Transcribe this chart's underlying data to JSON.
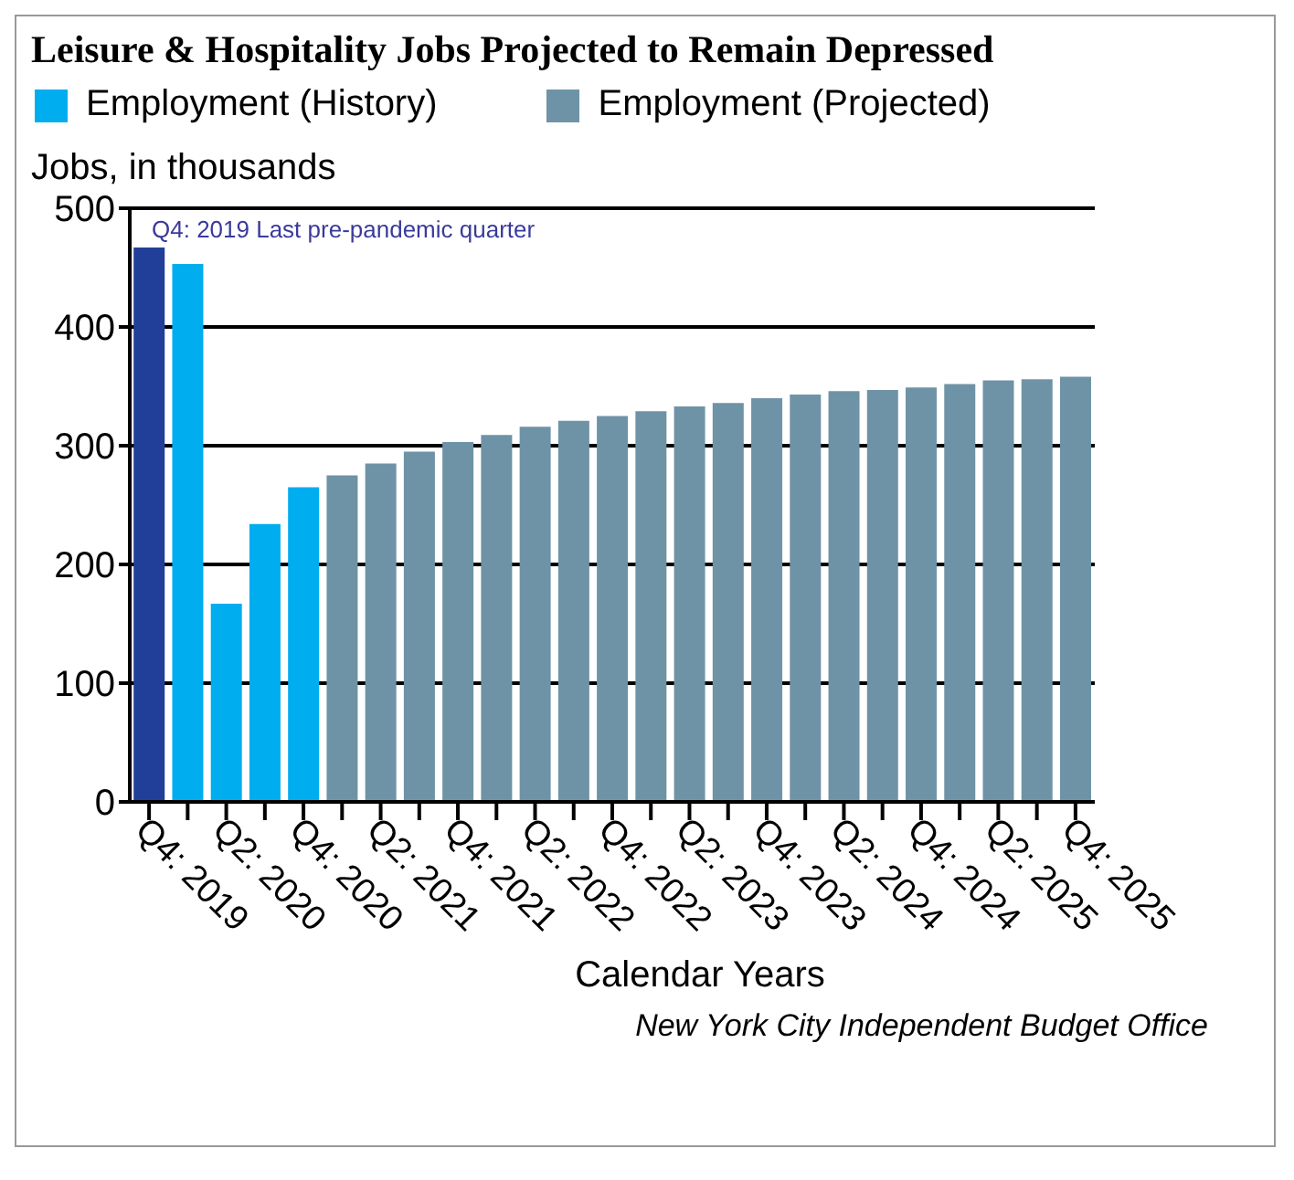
{
  "chart_data": {
    "type": "bar",
    "title": "Leisure & Hospitality Jobs Projected to Remain Depressed",
    "ylabel": "Jobs, in thousands",
    "xlabel": "Calendar Years",
    "annotations": [
      "Q4: 2019 Last pre-pandemic quarter",
      "New York City Independent Budget Office"
    ],
    "categories": [
      "Q4: 2019",
      null,
      "Q2: 2020",
      null,
      "Q4: 2020",
      null,
      "Q2: 2021",
      null,
      "Q4: 2021",
      null,
      "Q2: 2022",
      null,
      "Q4: 2022",
      null,
      "Q2: 2023",
      null,
      "Q4: 2023",
      null,
      "Q2: 2024",
      null,
      "Q4: 2024",
      null,
      "Q2: 2025",
      null,
      "Q4: 2025"
    ],
    "series": [
      {
        "name": "Employment (History)",
        "color": "#00adee",
        "colors": [
          "#213f99",
          "#00adee",
          "#00adee",
          "#00adee",
          "#00adee",
          null,
          null,
          null,
          null,
          null,
          null,
          null,
          null,
          null,
          null,
          null,
          null,
          null,
          null,
          null,
          null,
          null,
          null,
          null,
          null
        ],
        "values": [
          467,
          453,
          167,
          234,
          265,
          null,
          null,
          null,
          null,
          null,
          null,
          null,
          null,
          null,
          null,
          null,
          null,
          null,
          null,
          null,
          null,
          null,
          null,
          null,
          null
        ]
      },
      {
        "name": "Employment (Projected)",
        "color": "#6f93a6",
        "values": [
          null,
          null,
          null,
          null,
          null,
          275,
          285,
          295,
          303,
          309,
          316,
          321,
          325,
          329,
          333,
          336,
          340,
          343,
          346,
          347,
          349,
          352,
          355,
          356,
          358
        ]
      }
    ],
    "stacked": true,
    "ylim": [
      0,
      500
    ],
    "yticks": [
      0,
      100,
      200,
      300,
      400,
      500
    ],
    "grid": "y",
    "legend": "top left"
  }
}
